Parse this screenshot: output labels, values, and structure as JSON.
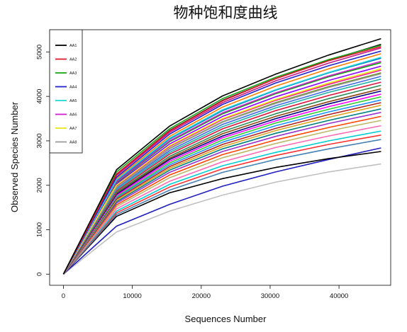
{
  "chart_data": {
    "type": "line",
    "title": "物种饱和度曲线",
    "xlabel": "Sequences Number",
    "ylabel": "Observed Species Number",
    "xlim": [
      -2000,
      47500
    ],
    "ylim": [
      -250,
      5500
    ],
    "xticks": [
      0,
      10000,
      20000,
      30000,
      40000
    ],
    "yticks": [
      0,
      1000,
      2000,
      3000,
      4000,
      5000
    ],
    "grid": false,
    "legend_position": "top-left",
    "x": [
      0,
      7700,
      15400,
      23100,
      30800,
      38500,
      46100
    ],
    "series": [
      {
        "name": "AA1",
        "color": "#000000",
        "values": [
          0,
          2350,
          3330,
          4010,
          4500,
          4930,
          5300
        ]
      },
      {
        "name": "AA2",
        "color": "#e0192a",
        "values": [
          0,
          2250,
          3220,
          3900,
          4400,
          4800,
          5120
        ]
      },
      {
        "name": "AA3",
        "color": "#1aa51a",
        "values": [
          0,
          2300,
          3270,
          3950,
          4430,
          4830,
          5150
        ]
      },
      {
        "name": "AA4",
        "color": "#2222cc",
        "values": [
          0,
          2180,
          3150,
          3820,
          4300,
          4690,
          5020
        ]
      },
      {
        "name": "AA5",
        "color": "#22d7d7",
        "values": [
          0,
          2120,
          3060,
          3700,
          4150,
          4540,
          4880
        ]
      },
      {
        "name": "AA6",
        "color": "#d11ed1",
        "values": [
          0,
          2080,
          3000,
          3630,
          4080,
          4460,
          4790
        ]
      },
      {
        "name": "AA7",
        "color": "#e8e818",
        "values": [
          0,
          2000,
          2890,
          3500,
          3930,
          4300,
          4620
        ]
      },
      {
        "name": "AA8",
        "color": "#9a9a9a",
        "values": [
          0,
          1950,
          2820,
          3420,
          3840,
          4200,
          4510
        ]
      },
      {
        "color": "#111111",
        "values": [
          0,
          2250,
          3230,
          3910,
          4400,
          4810,
          5170
        ]
      },
      {
        "color": "#c71585",
        "values": [
          0,
          2220,
          3190,
          3860,
          4350,
          4750,
          5090
        ]
      },
      {
        "color": "#ff7f00",
        "values": [
          0,
          2150,
          3100,
          3760,
          4230,
          4620,
          4960
        ]
      },
      {
        "color": "#0070c0",
        "values": [
          0,
          2100,
          3040,
          3680,
          4140,
          4530,
          4860
        ]
      },
      {
        "color": "#00a000",
        "values": [
          0,
          2060,
          2980,
          3610,
          4060,
          4440,
          4760
        ]
      },
      {
        "color": "#8b00ff",
        "values": [
          0,
          2030,
          2930,
          3550,
          3990,
          4360,
          4680
        ]
      },
      {
        "color": "#ff1493",
        "values": [
          0,
          1990,
          2870,
          3480,
          3910,
          4270,
          4590
        ]
      },
      {
        "color": "#6b8e23",
        "values": [
          0,
          1960,
          2830,
          3430,
          3860,
          4220,
          4530
        ]
      },
      {
        "color": "#4169e1",
        "values": [
          0,
          1930,
          2780,
          3370,
          3790,
          4140,
          4450
        ]
      },
      {
        "color": "#20b2aa",
        "values": [
          0,
          1900,
          2740,
          3320,
          3740,
          4090,
          4390
        ]
      },
      {
        "color": "#dc143c",
        "values": [
          0,
          1870,
          2700,
          3270,
          3680,
          4020,
          4320
        ]
      },
      {
        "color": "#2e8b57",
        "values": [
          0,
          1840,
          2650,
          3210,
          3610,
          3950,
          4250
        ]
      },
      {
        "color": "#8b4513",
        "values": [
          0,
          1820,
          2610,
          3160,
          3550,
          3880,
          4170
        ]
      },
      {
        "color": "#000080",
        "values": [
          0,
          1800,
          2580,
          3110,
          3500,
          3830,
          4120
        ]
      },
      {
        "color": "#ff00ff",
        "values": [
          0,
          1770,
          2540,
          3070,
          3450,
          3770,
          4050
        ]
      },
      {
        "color": "#32cd32",
        "values": [
          0,
          1740,
          2500,
          3020,
          3400,
          3710,
          3990
        ]
      },
      {
        "color": "#1e90ff",
        "values": [
          0,
          1720,
          2460,
          2970,
          3340,
          3650,
          3920
        ]
      },
      {
        "color": "#b22222",
        "values": [
          0,
          1690,
          2420,
          2920,
          3280,
          3590,
          3860
        ]
      },
      {
        "color": "#daa520",
        "values": [
          0,
          1660,
          2380,
          2870,
          3230,
          3530,
          3800
        ]
      },
      {
        "color": "#008080",
        "values": [
          0,
          1630,
          2340,
          2820,
          3170,
          3460,
          3720
        ]
      },
      {
        "color": "#9932cc",
        "values": [
          0,
          1600,
          2290,
          2760,
          3100,
          3390,
          3640
        ]
      },
      {
        "color": "#ff4500",
        "values": [
          0,
          1560,
          2230,
          2690,
          3020,
          3300,
          3550
        ]
      },
      {
        "color": "#bdb76b",
        "values": [
          0,
          1520,
          2170,
          2620,
          2940,
          3220,
          3460
        ]
      },
      {
        "color": "#ff69b4",
        "values": [
          0,
          1470,
          2090,
          2530,
          2850,
          3110,
          3340
        ]
      },
      {
        "color": "#00ced1",
        "values": [
          0,
          1420,
          2020,
          2440,
          2740,
          3000,
          3220
        ]
      },
      {
        "color": "#ff3030",
        "values": [
          0,
          1380,
          1960,
          2370,
          2670,
          2920,
          3130
        ]
      },
      {
        "color": "#4682b4",
        "values": [
          0,
          1340,
          1890,
          2290,
          2580,
          2820,
          3030
        ]
      },
      {
        "color": "#000000",
        "values": [
          0,
          1300,
          1830,
          2150,
          2400,
          2600,
          2760
        ]
      },
      {
        "color": "#1f1fbf",
        "values": [
          0,
          1080,
          1570,
          1980,
          2300,
          2580,
          2840
        ]
      },
      {
        "color": "#c0c0c0",
        "values": [
          0,
          950,
          1420,
          1780,
          2070,
          2300,
          2480
        ]
      }
    ]
  }
}
